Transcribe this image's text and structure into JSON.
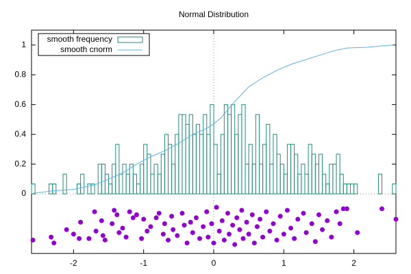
{
  "chart_data": {
    "type": "layered",
    "title": "Normal Distribution",
    "xlim": [
      -2.6,
      2.6
    ],
    "ylim": [
      -0.4,
      1.1
    ],
    "xticks": [
      -2,
      -1,
      0,
      1,
      2
    ],
    "yticks": [
      0,
      0.2,
      0.4,
      0.6,
      0.8,
      1
    ],
    "legend": "top-left",
    "series": [
      {
        "type": "histogram",
        "name": "smooth frequency",
        "color": "#1a8f7a",
        "bins": [
          -2.6,
          -2.55,
          -2.5,
          -2.45,
          -2.4,
          -2.35,
          -2.3,
          -2.25,
          -2.2,
          -2.15,
          -2.1,
          -2.05,
          -2,
          -1.95,
          -1.9,
          -1.85,
          -1.8,
          -1.75,
          -1.7,
          -1.65,
          -1.6,
          -1.55,
          -1.5,
          -1.45,
          -1.4,
          -1.35,
          -1.3,
          -1.25,
          -1.2,
          -1.15,
          -1.1,
          -1.05,
          -1,
          -0.95,
          -0.9,
          -0.85,
          -0.8,
          -0.75,
          -0.7,
          -0.65,
          -0.6,
          -0.55,
          -0.5,
          -0.45,
          -0.4,
          -0.35,
          -0.3,
          -0.25,
          -0.2,
          -0.15,
          -0.1,
          -0.05,
          0,
          0.05,
          0.1,
          0.15,
          0.2,
          0.25,
          0.3,
          0.35,
          0.4,
          0.45,
          0.5,
          0.55,
          0.6,
          0.65,
          0.7,
          0.75,
          0.8,
          0.85,
          0.9,
          0.95,
          1,
          1.05,
          1.1,
          1.15,
          1.2,
          1.25,
          1.3,
          1.35,
          1.4,
          1.45,
          1.5,
          1.55,
          1.6,
          1.65,
          1.7,
          1.75,
          1.8,
          1.85,
          1.9,
          1.95,
          2,
          2.05,
          2.1,
          2.15,
          2.2,
          2.25,
          2.3,
          2.35,
          2.4,
          2.45,
          2.5,
          2.55,
          2.6
        ],
        "values": [
          0.067,
          0,
          0,
          0,
          0,
          0.067,
          0.067,
          0,
          0,
          0.133,
          0,
          0,
          0,
          0.067,
          0.133,
          0,
          0.067,
          0.067,
          0,
          0.2,
          0.2,
          0.133,
          0.067,
          0.2,
          0.333,
          0.133,
          0.2,
          0.133,
          0.2,
          0.133,
          0.067,
          0.2,
          0.333,
          0.267,
          0.133,
          0.2,
          0.133,
          0.267,
          0.4,
          0.333,
          0.2,
          0.4,
          0.533,
          0.533,
          0.467,
          0.533,
          0.4,
          0.467,
          0.4,
          0.533,
          0.4,
          0.6,
          0.333,
          0.133,
          0.4,
          0.6,
          0.533,
          0.6,
          0.4,
          0.533,
          0.6,
          0.2,
          0.333,
          0.2,
          0.533,
          0.2,
          0.333,
          0.467,
          0.2,
          0.4,
          0.267,
          0.2,
          0.133,
          0.333,
          0.333,
          0.267,
          0.133,
          0.2,
          0.133,
          0.333,
          0.267,
          0.2,
          0.267,
          0.133,
          0.067,
          0.2,
          0.2,
          0.267,
          0.133,
          0.067,
          0.067,
          0.067,
          0.067,
          0,
          0,
          0,
          0,
          0,
          0,
          0.133,
          0,
          0,
          0,
          0.067
        ]
      },
      {
        "type": "line",
        "name": "smooth cnorm",
        "color": "#56b4e9",
        "x": [
          -2.57,
          -2.3,
          -2,
          -1.7,
          -1.5,
          -1.3,
          -1.1,
          -0.9,
          -0.7,
          -0.5,
          -0.3,
          -0.1,
          0,
          0.1,
          0.3,
          0.5,
          0.7,
          0.9,
          1.1,
          1.3,
          1.5,
          1.7,
          1.9,
          2.2,
          2.4,
          2.57
        ],
        "values": [
          0.005,
          0.02,
          0.03,
          0.06,
          0.1,
          0.14,
          0.2,
          0.25,
          0.29,
          0.34,
          0.4,
          0.44,
          0.47,
          0.51,
          0.62,
          0.72,
          0.78,
          0.83,
          0.87,
          0.9,
          0.93,
          0.96,
          0.98,
          0.985,
          0.995,
          1
        ]
      },
      {
        "type": "scatter",
        "color": "#9400d3",
        "x": [
          -2.58,
          -2.32,
          -2.28,
          -2.1,
          -2,
          -1.92,
          -1.9,
          -1.78,
          -1.7,
          -1.68,
          -1.6,
          -1.58,
          -1.55,
          -1.45,
          -1.42,
          -1.38,
          -1.35,
          -1.3,
          -1.25,
          -1.2,
          -1.15,
          -1.1,
          -1.03,
          -1,
          -0.95,
          -0.9,
          -0.82,
          -0.78,
          -0.72,
          -0.7,
          -0.65,
          -0.6,
          -0.58,
          -0.52,
          -0.45,
          -0.42,
          -0.38,
          -0.33,
          -0.3,
          -0.25,
          -0.2,
          -0.15,
          -0.1,
          -0.08,
          -0.03,
          0,
          0.04,
          0.08,
          0.12,
          0.15,
          0.2,
          0.22,
          0.27,
          0.3,
          0.33,
          0.37,
          0.4,
          0.42,
          0.47,
          0.5,
          0.55,
          0.58,
          0.62,
          0.66,
          0.7,
          0.75,
          0.8,
          0.85,
          0.9,
          0.95,
          1,
          1.05,
          1.1,
          1.15,
          1.2,
          1.28,
          1.32,
          1.4,
          1.45,
          1.5,
          1.55,
          1.62,
          1.68,
          1.75,
          1.8,
          1.85,
          1.9,
          2.05,
          2.4,
          2.6
        ],
        "values": [
          -0.31,
          -0.29,
          -0.33,
          -0.24,
          -0.27,
          -0.3,
          -0.19,
          -0.3,
          -0.12,
          -0.25,
          -0.18,
          -0.28,
          -0.31,
          -0.2,
          -0.11,
          -0.14,
          -0.26,
          -0.23,
          -0.29,
          -0.12,
          -0.16,
          -0.14,
          -0.3,
          -0.17,
          -0.25,
          -0.22,
          -0.16,
          -0.13,
          -0.27,
          -0.2,
          -0.31,
          -0.15,
          -0.24,
          -0.28,
          -0.13,
          -0.21,
          -0.33,
          -0.19,
          -0.26,
          -0.16,
          -0.3,
          -0.22,
          -0.12,
          -0.29,
          -0.2,
          -0.33,
          -0.09,
          -0.25,
          -0.18,
          -0.31,
          -0.13,
          -0.27,
          -0.21,
          -0.34,
          -0.16,
          -0.24,
          -0.11,
          -0.3,
          -0.19,
          -0.27,
          -0.14,
          -0.33,
          -0.22,
          -0.17,
          -0.29,
          -0.12,
          -0.25,
          -0.2,
          -0.31,
          -0.15,
          -0.27,
          -0.11,
          -0.23,
          -0.3,
          -0.17,
          -0.13,
          -0.26,
          -0.2,
          -0.32,
          -0.14,
          -0.24,
          -0.18,
          -0.29,
          -0.12,
          -0.2,
          -0.1,
          -0.1,
          -0.26,
          -0.1,
          -0.17
        ]
      }
    ]
  }
}
